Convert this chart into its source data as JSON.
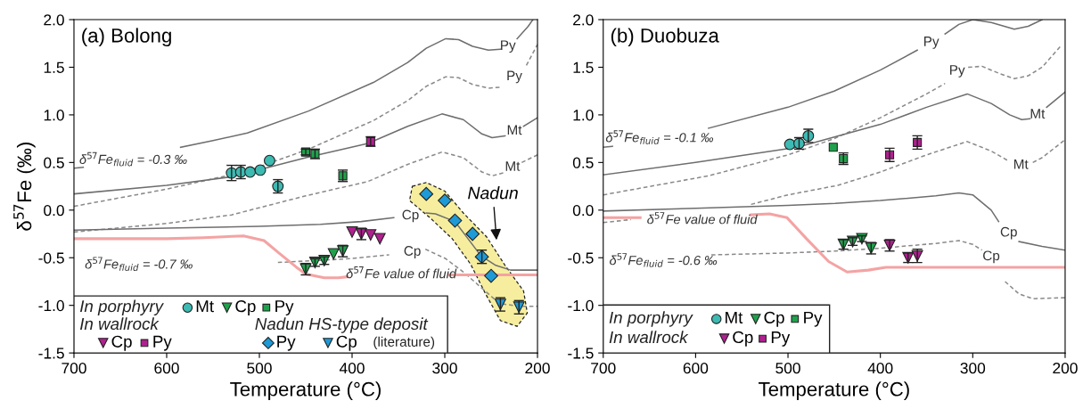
{
  "chart_data": [
    {
      "type": "scatter",
      "title": "(a) Bolong",
      "xlabel": "Temperature (°C)",
      "ylabel": "δ$^{57}$Fe (‰)",
      "xlim": [
        700,
        200
      ],
      "xticks": [
        700,
        600,
        500,
        400,
        300,
        200
      ],
      "ylim": [
        -1.5,
        2.0
      ],
      "yticks": [
        {
          "value": -1.5,
          "label": "-1.5"
        },
        {
          "value": -1.0,
          "label": "-1.0"
        },
        {
          "value": -0.5,
          "label": "-0.5"
        },
        {
          "value": 0.0,
          "label": "0.0"
        },
        {
          "value": 0.5,
          "label": "0.5"
        },
        {
          "value": 1.0,
          "label": "1.0"
        },
        {
          "value": 1.5,
          "label": "1.5"
        },
        {
          "value": 2.0,
          "label": "2.0"
        }
      ],
      "legend": "bottom left",
      "series": [
        {
          "type": "line",
          "line_style": "solid",
          "color": "#6e6e6e",
          "x": [
            700,
            690,
            650,
            585,
            550,
            513,
            447,
            377,
            340,
            320,
            299,
            285,
            270,
            253,
            240,
            232,
            222,
            210,
            205
          ],
          "values": [
            0.44,
            0.45,
            null,
            0.66,
            0.73,
            0.81,
            1.04,
            1.34,
            1.55,
            1.7,
            1.8,
            1.79,
            1.72,
            1.68,
            1.69,
            null,
            1.8,
            1.93,
            2.0
          ]
        },
        {
          "type": "line",
          "line_style": "dashed",
          "color": "#8a8a8a",
          "x": [
            700,
            600,
            513,
            447,
            377,
            340,
            320,
            299,
            285,
            270,
            253,
            240,
            225,
            212,
            200
          ],
          "values": [
            0.04,
            0.22,
            0.41,
            0.64,
            0.94,
            1.15,
            1.3,
            1.4,
            1.39,
            1.32,
            1.28,
            1.29,
            null,
            1.52,
            1.74
          ]
        },
        {
          "type": "line",
          "line_style": "solid",
          "color": "#6e6e6e",
          "x": [
            700,
            600,
            530,
            450,
            383,
            340,
            303,
            280,
            260,
            249,
            235,
            225,
            215,
            200
          ],
          "values": [
            0.17,
            0.26,
            0.35,
            0.55,
            0.7,
            0.88,
            1.01,
            0.95,
            0.8,
            0.76,
            0.78,
            null,
            0.88,
            0.97
          ]
        },
        {
          "type": "line",
          "line_style": "dashed",
          "color": "#8a8a8a",
          "x": [
            700,
            600,
            530,
            450,
            383,
            340,
            303,
            280,
            260,
            249,
            237,
            227,
            217,
            200
          ],
          "values": [
            -0.23,
            -0.14,
            -0.05,
            0.15,
            0.3,
            0.48,
            0.61,
            0.55,
            0.4,
            0.36,
            0.39,
            null,
            0.5,
            0.58
          ]
        },
        {
          "type": "line",
          "line_style": "solid",
          "color": "#6e6e6e",
          "x": [
            700,
            600,
            500,
            434,
            390,
            355,
            337,
            320,
            310,
            289,
            275,
            261,
            245,
            229,
            200
          ],
          "values": [
            -0.21,
            -0.19,
            -0.17,
            -0.15,
            -0.12,
            -0.08,
            null,
            -0.03,
            -0.04,
            -0.12,
            -0.3,
            -0.48,
            -0.58,
            -0.63,
            -0.63
          ]
        },
        {
          "type": "line",
          "line_style": "dashed",
          "color": "#8a8a8a",
          "x": [
            480,
            402,
            360,
            335,
            321,
            299,
            280,
            267,
            241,
            220,
            200
          ],
          "values": [
            -0.55,
            -0.51,
            -0.47,
            null,
            -0.41,
            -0.51,
            -0.65,
            -0.76,
            -0.98,
            -1.01,
            -1.01
          ]
        },
        {
          "type": "line",
          "line_style": "solid",
          "color": "#f4a3a3",
          "x": [
            700,
            600,
            560,
            517,
            495,
            479,
            460,
            450,
            430,
            415,
            405,
            350,
            295,
            250,
            200
          ],
          "values": [
            -0.3,
            -0.3,
            -0.29,
            -0.27,
            -0.32,
            -0.45,
            -0.6,
            -0.67,
            -0.71,
            -0.71,
            -0.7,
            null,
            -0.68,
            -0.68,
            -0.68
          ]
        },
        {
          "name": "Mt",
          "marker": "circle",
          "color": "#3dbab2",
          "x": [
            530,
            520,
            510,
            499,
            489,
            480
          ],
          "values": [
            0.39,
            0.4,
            0.4,
            0.42,
            0.52,
            0.25
          ],
          "errors": [
            0.08,
            0.07,
            null,
            null,
            null,
            0.07
          ]
        },
        {
          "name": "Cp",
          "marker": "triangle",
          "color": "#1fa24c",
          "x": [
            450,
            440,
            430,
            420,
            410
          ],
          "values": [
            -0.62,
            -0.55,
            -0.53,
            -0.46,
            -0.43
          ],
          "errors": [
            0.06,
            0.04,
            0.04,
            null,
            0.06
          ]
        },
        {
          "name": "Py",
          "marker": "square",
          "color": "#1fa24c",
          "x": [
            450,
            440,
            410
          ],
          "values": [
            0.61,
            0.59,
            0.36
          ],
          "errors": [
            0.03,
            0.05,
            0.06
          ]
        },
        {
          "name": "Cp",
          "marker": "triangle",
          "color": "#b0208f",
          "x": [
            400,
            390,
            380,
            370
          ],
          "values": [
            -0.23,
            -0.25,
            -0.26,
            -0.3
          ],
          "errors": [
            null,
            0.06,
            null,
            null
          ]
        },
        {
          "name": "Py",
          "marker": "square",
          "color": "#b0208f",
          "x": [
            380
          ],
          "values": [
            0.72
          ],
          "errors": [
            0.05
          ]
        },
        {
          "name": "Py",
          "marker": "diamond",
          "color": "#1e9ad6",
          "x": [
            320,
            300,
            289,
            270,
            260,
            250
          ],
          "values": [
            0.17,
            0.1,
            -0.11,
            -0.25,
            -0.49,
            -0.69
          ],
          "errors": [
            null,
            null,
            null,
            null,
            0.07,
            null
          ]
        },
        {
          "name": "Cp",
          "marker": "triangle",
          "color": "#1e9ad6",
          "x": [
            240,
            220
          ],
          "values": [
            -0.99,
            -1.02
          ],
          "errors": [
            0.07,
            0.07
          ]
        }
      ],
      "annotations": [
        "In porphyry",
        "In wallrock",
        "Nadun HS-type deposit",
        "(literature)",
        "δ$^{57}$Fe$_{fluid}$ = -0.3 ‰",
        "δ$^{57}$Fe$_{fluid}$ = -0.7 ‰",
        "δ$^{57}$Fe value of fluid",
        "Py",
        "Py",
        "Mt",
        "Mt",
        "Cp",
        "Cp",
        "Nadun"
      ]
    },
    {
      "type": "scatter",
      "title": "(b) Duobuza",
      "xlabel": "Temperature (°C)",
      "xlim": [
        700,
        200
      ],
      "xticks": [
        700,
        600,
        500,
        400,
        300,
        200
      ],
      "ylim": [
        -1.5,
        2.0
      ],
      "yticks": [
        {
          "value": -1.5,
          "label": "-1.5"
        },
        {
          "value": -1.0,
          "label": "-1.0"
        },
        {
          "value": -0.5,
          "label": "-0.5"
        },
        {
          "value": 0.0,
          "label": "0.0"
        },
        {
          "value": 0.5,
          "label": "0.5"
        },
        {
          "value": 1.0,
          "label": "1.0"
        },
        {
          "value": 1.5,
          "label": "1.5"
        },
        {
          "value": 2.0,
          "label": "2.0"
        }
      ],
      "legend": "bottom left",
      "series": [
        {
          "type": "line",
          "line_style": "solid",
          "color": "#6e6e6e",
          "x": [
            700,
            690,
            640,
            586,
            500,
            450,
            400,
            360,
            345,
            330,
            315,
            300,
            280,
            255,
            240,
            225
          ],
          "values": [
            0.66,
            0.67,
            null,
            0.86,
            1.08,
            1.25,
            1.47,
            1.68,
            null,
            1.85,
            1.95,
            2.0,
            1.97,
            1.9,
            1.93,
            2.0
          ]
        },
        {
          "type": "line",
          "line_style": "dashed",
          "color": "#8a8a8a",
          "x": [
            700,
            586,
            500,
            450,
            400,
            350,
            330,
            317,
            305,
            290,
            270,
            255,
            240,
            225,
            205
          ],
          "values": [
            0.16,
            0.36,
            0.58,
            0.75,
            0.97,
            1.22,
            1.33,
            null,
            1.5,
            1.51,
            1.43,
            1.38,
            1.41,
            1.5,
            1.72
          ]
        },
        {
          "type": "line",
          "line_style": "solid",
          "color": "#6e6e6e",
          "x": [
            700,
            600,
            490,
            400,
            350,
            306,
            280,
            260,
            247,
            238,
            230,
            220,
            200
          ],
          "values": [
            0.37,
            0.5,
            0.66,
            0.9,
            1.08,
            1.22,
            1.12,
            1.0,
            0.95,
            0.96,
            null,
            1.08,
            1.24
          ]
        },
        {
          "type": "line",
          "line_style": "dashed",
          "color": "#8a8a8a",
          "x": [
            700,
            670,
            600,
            540,
            500,
            446,
            400,
            350,
            306,
            280,
            262,
            248,
            235,
            225,
            200
          ],
          "values": [
            -0.13,
            -0.1,
            null,
            0.06,
            0.16,
            0.26,
            0.4,
            0.58,
            0.72,
            0.62,
            0.52,
            null,
            0.5,
            0.55,
            0.74
          ]
        },
        {
          "type": "line",
          "line_style": "solid",
          "color": "#6e6e6e",
          "x": [
            700,
            600,
            500,
            449,
            400,
            340,
            315,
            300,
            280,
            272,
            260,
            250,
            225,
            200
          ],
          "values": [
            -0.01,
            0.02,
            0.05,
            0.07,
            0.1,
            0.15,
            0.18,
            0.16,
            0.0,
            -0.12,
            null,
            -0.33,
            -0.38,
            -0.42
          ]
        },
        {
          "type": "line",
          "line_style": "dashed",
          "color": "#8a8a8a",
          "x": [
            583,
            500,
            449,
            400,
            340,
            315,
            300,
            290,
            280,
            265,
            250,
            235,
            200
          ],
          "values": [
            -0.47,
            -0.45,
            -0.43,
            -0.4,
            -0.35,
            -0.32,
            -0.36,
            -0.42,
            null,
            -0.75,
            -0.88,
            -0.93,
            -0.92
          ]
        },
        {
          "type": "line",
          "line_style": "solid",
          "color": "#f4a3a3",
          "x": [
            700,
            660,
            600,
            540,
            520,
            501,
            480,
            456,
            436,
            413,
            394,
            300,
            200
          ],
          "values": [
            -0.08,
            -0.08,
            null,
            -0.05,
            -0.04,
            -0.08,
            -0.3,
            -0.54,
            -0.65,
            -0.63,
            -0.6,
            -0.6,
            -0.6
          ]
        },
        {
          "name": "Mt",
          "marker": "circle",
          "color": "#3dbab2",
          "x": [
            498,
            488,
            478
          ],
          "values": [
            0.69,
            0.7,
            0.78
          ],
          "errors": [
            null,
            0.06,
            0.07
          ]
        },
        {
          "name": "Cp",
          "marker": "triangle",
          "color": "#1fa24c",
          "x": [
            440,
            430,
            420,
            410
          ],
          "values": [
            -0.36,
            -0.33,
            -0.3,
            -0.4
          ],
          "errors": [
            0.05,
            0.04,
            0.03,
            0.06
          ]
        },
        {
          "name": "Py",
          "marker": "square",
          "color": "#1fa24c",
          "x": [
            451,
            440
          ],
          "values": [
            0.66,
            0.54
          ],
          "errors": [
            null,
            0.06
          ]
        },
        {
          "name": "Cp",
          "marker": "triangle",
          "color": "#b0208f",
          "x": [
            390,
            370,
            360
          ],
          "values": [
            -0.37,
            -0.5,
            -0.48
          ],
          "errors": [
            0.06,
            0.05,
            0.07
          ]
        },
        {
          "name": "Py",
          "marker": "square",
          "color": "#b0208f",
          "x": [
            390,
            360
          ],
          "values": [
            0.58,
            0.71
          ],
          "errors": [
            0.07,
            0.07
          ]
        }
      ],
      "annotations": [
        "In porphyry",
        "In wallrock",
        "δ$^{57}$Fe$_{fluid}$ = -0.1 ‰",
        "δ$^{57}$Fe$_{fluid}$ = -0.6 ‰",
        "δ$^{57}$Fe value of fluid",
        "Py",
        "Py",
        "Mt",
        "Mt",
        "Cp",
        "Cp"
      ]
    }
  ]
}
